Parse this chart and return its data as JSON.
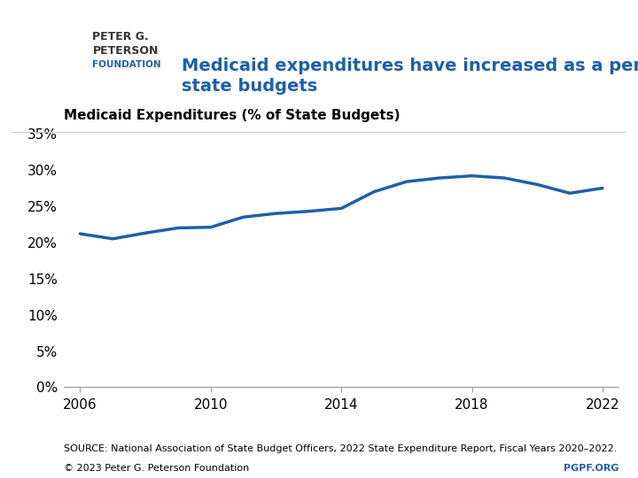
{
  "years": [
    2006,
    2007,
    2008,
    2009,
    2010,
    2011,
    2012,
    2013,
    2014,
    2015,
    2016,
    2017,
    2018,
    2019,
    2020,
    2021,
    2022
  ],
  "values": [
    0.212,
    0.205,
    0.213,
    0.22,
    0.221,
    0.235,
    0.24,
    0.243,
    0.247,
    0.27,
    0.284,
    0.289,
    0.292,
    0.289,
    0.28,
    0.268,
    0.275
  ],
  "line_color": "#1F5FA6",
  "line_width": 2.5,
  "ylim": [
    0,
    0.35
  ],
  "yticks": [
    0.0,
    0.05,
    0.1,
    0.15,
    0.2,
    0.25,
    0.3,
    0.35
  ],
  "xticks": [
    2006,
    2010,
    2014,
    2018,
    2022
  ],
  "xlim": [
    2005.5,
    2022.5
  ],
  "ylabel_text": "Medicaid Expenditures (% of State Budgets)",
  "title_text": "Medicaid expenditures have increased as a percentage of\nstate budgets",
  "title_color": "#1F5FA6",
  "source_text": "SOURCE: National Association of State Budget Officers, 2022 State Expenditure Report, Fiscal Years 2020–2022.",
  "copyright_text": "© 2023 Peter G. Peterson Foundation",
  "pgpf_text": "PGPF.ORG",
  "pgpf_color": "#1F5FA6",
  "background_color": "#ffffff",
  "header_bg_color": "#ffffff",
  "logo_box_color": "#1F5FA6"
}
